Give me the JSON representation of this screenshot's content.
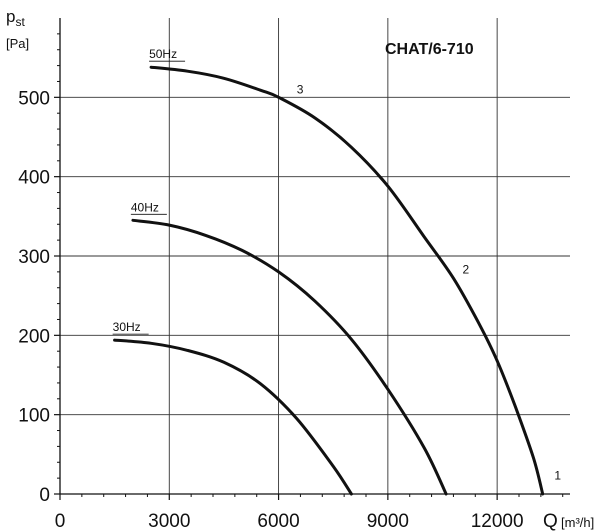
{
  "chart_data": {
    "type": "line",
    "title": "CHAT/6-710",
    "ylabel_symbol": "p",
    "ylabel_subscript": "st",
    "ylabel_unit": "[Pa]",
    "xlabel_symbol": "Q",
    "xlabel_unit": "[m³/h]",
    "xlim": [
      0,
      14000
    ],
    "ylim": [
      0,
      600
    ],
    "x_ticks": [
      "0",
      "3000",
      "6000",
      "9000",
      "12000"
    ],
    "x_tick_values": [
      0,
      3000,
      6000,
      9000,
      12000
    ],
    "y_ticks": [
      "0",
      "100",
      "200",
      "300",
      "400",
      "500"
    ],
    "y_tick_values": [
      0,
      100,
      200,
      300,
      400,
      500
    ],
    "grid": true,
    "series": [
      {
        "name": "50Hz",
        "points": [
          [
            2500,
            538
          ],
          [
            3500,
            533
          ],
          [
            4500,
            524
          ],
          [
            5500,
            509
          ],
          [
            6000,
            500
          ],
          [
            7000,
            474
          ],
          [
            8000,
            437
          ],
          [
            9000,
            388
          ],
          [
            10000,
            324
          ],
          [
            10800,
            272
          ],
          [
            11500,
            215
          ],
          [
            12000,
            168
          ],
          [
            12500,
            110
          ],
          [
            13000,
            45
          ],
          [
            13250,
            0
          ]
        ]
      },
      {
        "name": "40Hz",
        "points": [
          [
            2000,
            345
          ],
          [
            3000,
            339
          ],
          [
            4000,
            326
          ],
          [
            5000,
            307
          ],
          [
            6000,
            280
          ],
          [
            7000,
            243
          ],
          [
            8000,
            195
          ],
          [
            9000,
            132
          ],
          [
            10000,
            58
          ],
          [
            10600,
            0
          ]
        ]
      },
      {
        "name": "30Hz",
        "points": [
          [
            1500,
            194
          ],
          [
            2500,
            190
          ],
          [
            3500,
            181
          ],
          [
            4500,
            166
          ],
          [
            5500,
            139
          ],
          [
            6500,
            95
          ],
          [
            7500,
            35
          ],
          [
            8000,
            0
          ]
        ]
      }
    ],
    "point_labels": [
      {
        "text": "3",
        "x": 6500,
        "y": 505
      },
      {
        "text": "2",
        "x": 11050,
        "y": 278
      },
      {
        "text": "1",
        "x": 13570,
        "y": 18
      }
    ]
  }
}
